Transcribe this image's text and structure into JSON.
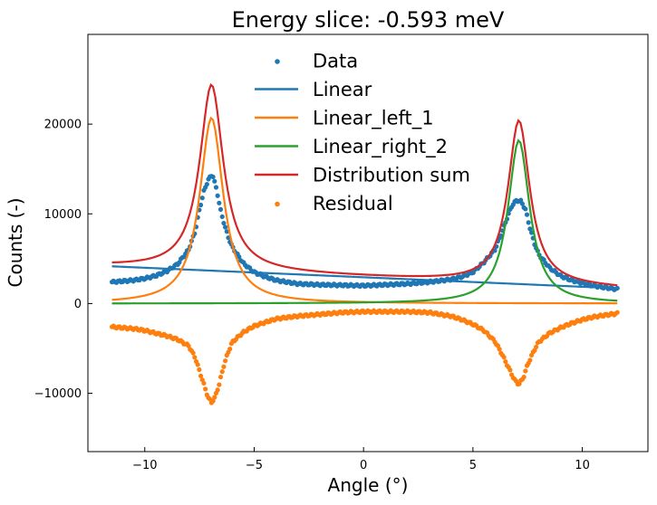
{
  "chart_data": {
    "type": "scatter",
    "title": "Energy slice: -0.593 meV",
    "xlabel": "Angle (°)",
    "ylabel": "Counts (-)",
    "xlim": [
      -12.6,
      13.0
    ],
    "ylim": [
      -16500,
      30000
    ],
    "xticks": [
      -10,
      -5,
      0,
      5,
      10
    ],
    "yticks": [
      -10000,
      0,
      10000,
      20000
    ],
    "xtick_labels": [
      "−10",
      "−5",
      "0",
      "5",
      "10"
    ],
    "ytick_labels": [
      "−10000",
      "0",
      "10000",
      "20000"
    ],
    "grid": false,
    "legend_position": "top-center",
    "x_range": [
      -11.5,
      11.6
    ],
    "series": [
      {
        "name": "Data",
        "kind": "scatter",
        "color": "#1f77b4",
        "points": [
          [
            -11.5,
            2400
          ],
          [
            -11.0,
            2500
          ],
          [
            -10.5,
            2600
          ],
          [
            -10.0,
            2800
          ],
          [
            -9.5,
            3100
          ],
          [
            -9.0,
            3600
          ],
          [
            -8.5,
            4400
          ],
          [
            -8.0,
            6000
          ],
          [
            -7.7,
            8000
          ],
          [
            -7.5,
            10500
          ],
          [
            -7.3,
            12500
          ],
          [
            -7.1,
            13800
          ],
          [
            -6.9,
            14400
          ],
          [
            -6.7,
            12500
          ],
          [
            -6.5,
            10000
          ],
          [
            -6.2,
            7500
          ],
          [
            -6.0,
            6300
          ],
          [
            -5.5,
            4500
          ],
          [
            -5.0,
            3500
          ],
          [
            -4.5,
            3000
          ],
          [
            -4.0,
            2600
          ],
          [
            -3.0,
            2200
          ],
          [
            -2.0,
            2100
          ],
          [
            -1.0,
            2050
          ],
          [
            0.0,
            2000
          ],
          [
            1.0,
            2100
          ],
          [
            2.0,
            2200
          ],
          [
            3.0,
            2400
          ],
          [
            4.0,
            2700
          ],
          [
            4.5,
            3000
          ],
          [
            5.0,
            3500
          ],
          [
            5.5,
            4600
          ],
          [
            6.0,
            6000
          ],
          [
            6.3,
            7800
          ],
          [
            6.6,
            9800
          ],
          [
            6.8,
            11000
          ],
          [
            7.0,
            11500
          ],
          [
            7.2,
            11400
          ],
          [
            7.4,
            10500
          ],
          [
            7.6,
            8500
          ],
          [
            7.8,
            6800
          ],
          [
            8.0,
            5500
          ],
          [
            8.5,
            4000
          ],
          [
            9.0,
            3100
          ],
          [
            9.5,
            2600
          ],
          [
            10.0,
            2300
          ],
          [
            10.5,
            2000
          ],
          [
            11.0,
            1800
          ],
          [
            11.6,
            1600
          ]
        ]
      },
      {
        "name": "Linear",
        "kind": "line",
        "color": "#1f77b4",
        "start": [
          -11.5,
          4150
        ],
        "end": [
          11.6,
          1700
        ]
      },
      {
        "name": "Linear_left_1",
        "kind": "line",
        "color": "#ff7f0e",
        "center": -6.95,
        "amplitude": 20700,
        "hwhm": 0.65
      },
      {
        "name": "Linear_right_2",
        "kind": "line",
        "color": "#2ca02c",
        "center": 7.1,
        "amplitude": 18200,
        "hwhm": 0.6
      },
      {
        "name": "Distribution sum",
        "kind": "line",
        "color": "#d62728"
      },
      {
        "name": "Residual",
        "kind": "scatter",
        "color": "#ff7f0e",
        "points": [
          [
            -11.5,
            -2600
          ],
          [
            -11.0,
            -2700
          ],
          [
            -10.5,
            -2800
          ],
          [
            -10.0,
            -3000
          ],
          [
            -9.5,
            -3300
          ],
          [
            -9.0,
            -3600
          ],
          [
            -8.5,
            -4000
          ],
          [
            -8.0,
            -4700
          ],
          [
            -7.7,
            -6000
          ],
          [
            -7.5,
            -7500
          ],
          [
            -7.3,
            -9000
          ],
          [
            -7.1,
            -10500
          ],
          [
            -6.95,
            -11000
          ],
          [
            -6.8,
            -10500
          ],
          [
            -6.6,
            -9000
          ],
          [
            -6.4,
            -7000
          ],
          [
            -6.2,
            -5500
          ],
          [
            -6.0,
            -4300
          ],
          [
            -5.5,
            -3200
          ],
          [
            -5.0,
            -2500
          ],
          [
            -4.0,
            -1700
          ],
          [
            -3.0,
            -1400
          ],
          [
            -2.0,
            -1200
          ],
          [
            -1.0,
            -1000
          ],
          [
            0.0,
            -900
          ],
          [
            1.0,
            -900
          ],
          [
            2.0,
            -900
          ],
          [
            3.0,
            -1000
          ],
          [
            4.0,
            -1400
          ],
          [
            4.5,
            -1800
          ],
          [
            5.0,
            -2300
          ],
          [
            5.5,
            -3000
          ],
          [
            6.0,
            -4200
          ],
          [
            6.3,
            -5500
          ],
          [
            6.6,
            -7000
          ],
          [
            6.9,
            -8500
          ],
          [
            7.1,
            -9000
          ],
          [
            7.3,
            -8300
          ],
          [
            7.5,
            -6800
          ],
          [
            7.8,
            -5200
          ],
          [
            8.0,
            -4300
          ],
          [
            8.5,
            -3300
          ],
          [
            9.0,
            -2700
          ],
          [
            9.5,
            -2200
          ],
          [
            10.0,
            -1800
          ],
          [
            10.5,
            -1500
          ],
          [
            11.0,
            -1300
          ],
          [
            11.6,
            -1100
          ]
        ]
      }
    ]
  }
}
